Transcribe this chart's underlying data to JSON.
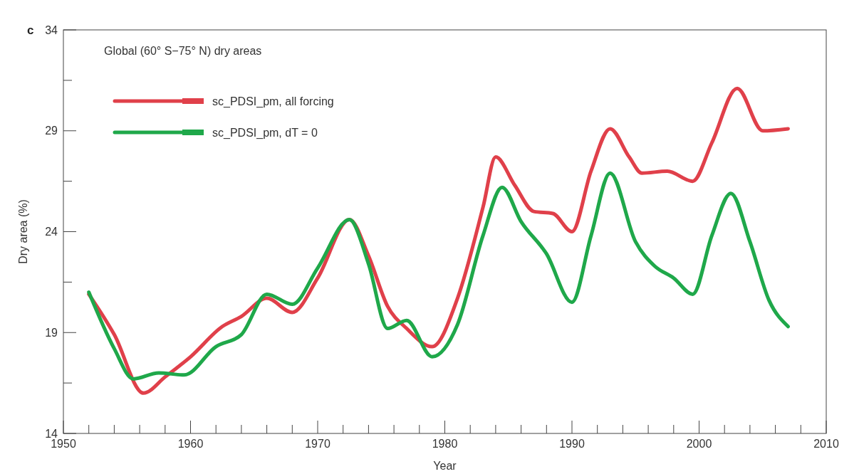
{
  "chart_data": {
    "type": "line",
    "title": "Global (60° S−75° N) dry areas",
    "xlabel": "Year",
    "ylabel": "Dry area (%)",
    "annotations": [
      "c"
    ],
    "xlim": [
      1950,
      2010
    ],
    "ylim": [
      14,
      34
    ],
    "xticks": [
      1950,
      {
        "value": 1952,
        "label": null
      },
      {
        "value": 1954,
        "label": null
      },
      {
        "value": 1956,
        "label": null
      },
      {
        "value": 1958,
        "label": null
      },
      1960,
      {
        "value": 1962,
        "label": null
      },
      {
        "value": 1964,
        "label": null
      },
      {
        "value": 1966,
        "label": null
      },
      {
        "value": 1968,
        "label": null
      },
      1970,
      {
        "value": 1972,
        "label": null
      },
      {
        "value": 1974,
        "label": null
      },
      {
        "value": 1976,
        "label": null
      },
      {
        "value": 1978,
        "label": null
      },
      1980,
      {
        "value": 1982,
        "label": null
      },
      {
        "value": 1984,
        "label": null
      },
      {
        "value": 1986,
        "label": null
      },
      {
        "value": 1988,
        "label": null
      },
      1990,
      {
        "value": 1992,
        "label": null
      },
      {
        "value": 1994,
        "label": null
      },
      {
        "value": 1996,
        "label": null
      },
      {
        "value": 1998,
        "label": null
      },
      2000,
      {
        "value": 2002,
        "label": null
      },
      {
        "value": 2004,
        "label": null
      },
      {
        "value": 2006,
        "label": null
      },
      {
        "value": 2008,
        "label": null
      },
      2010
    ],
    "yticks": [
      14,
      {
        "value": 16.5,
        "label": null
      },
      19,
      {
        "value": 21.5,
        "label": null
      },
      24,
      {
        "value": 26.5,
        "label": null
      },
      29,
      {
        "value": 31.5,
        "label": null
      },
      34
    ],
    "grid": false,
    "legend": "top left",
    "line_style": "solid",
    "marker": "none",
    "series": [
      {
        "name": "sc_PDSI_pm, all forcing",
        "color": "#e0404a",
        "x": [
          1952,
          1954,
          1956.3,
          1958,
          1960,
          1962.5,
          1964,
          1966,
          1968,
          1970,
          1972.5,
          1974,
          1975.5,
          1977,
          1979,
          1981,
          1983,
          1984,
          1985.5,
          1987,
          1988.5,
          1990,
          1991.5,
          1993,
          1994.5,
          1995.5,
          1997.5,
          1999.5,
          2001,
          2003,
          2005,
          2007
        ],
        "values": [
          20.9,
          18.9,
          16.0,
          16.8,
          17.8,
          19.3,
          19.8,
          20.7,
          20.0,
          21.7,
          24.6,
          22.8,
          20.3,
          19.2,
          18.3,
          20.7,
          25.2,
          27.7,
          26.3,
          25.0,
          24.9,
          24.0,
          27.0,
          29.1,
          27.7,
          26.9,
          27.0,
          26.5,
          28.4,
          31.1,
          29.0,
          29.1
        ]
      },
      {
        "name": "sc_PDSI_pm, dT = 0",
        "color": "#1fa84a",
        "x": [
          1952,
          1954,
          1955.5,
          1957.5,
          1959.5,
          1962,
          1964,
          1966,
          1968,
          1970,
          1972.5,
          1974,
          1975.5,
          1977,
          1979,
          1981,
          1983,
          1984.5,
          1986,
          1988,
          1990,
          1991.5,
          1993,
          1995,
          1996.5,
          1998,
          1999.5,
          2001,
          2002.5,
          2004,
          2005.5,
          2007
        ],
        "values": [
          21.0,
          18.2,
          16.7,
          17.0,
          16.9,
          18.3,
          18.9,
          20.9,
          20.4,
          22.2,
          24.6,
          22.4,
          19.2,
          19.6,
          17.8,
          19.4,
          23.8,
          26.2,
          24.5,
          22.9,
          20.5,
          23.8,
          26.9,
          23.5,
          22.3,
          21.7,
          20.9,
          23.8,
          25.9,
          23.5,
          20.6,
          19.3
        ]
      }
    ]
  }
}
